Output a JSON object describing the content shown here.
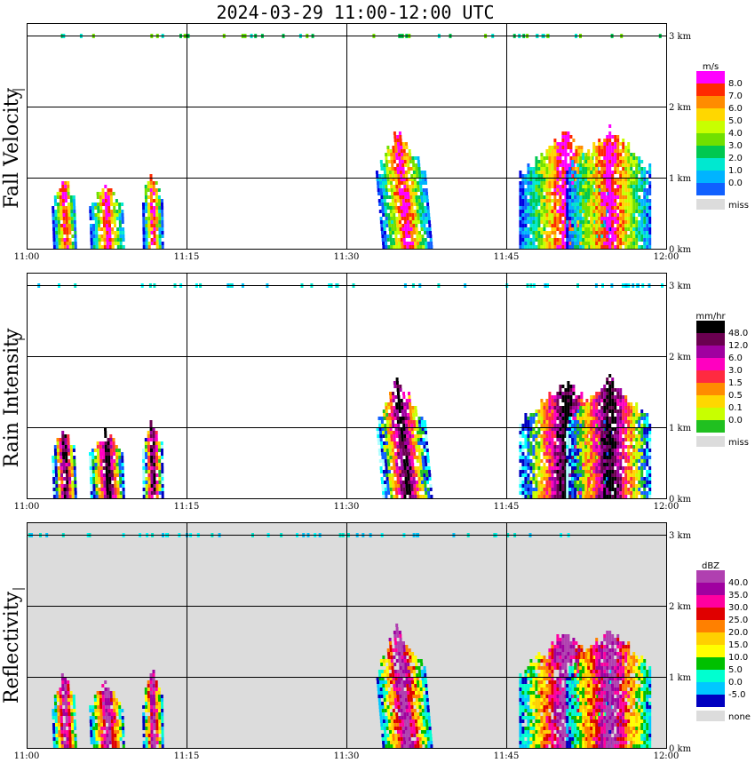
{
  "chart_data": {
    "type": "heatmap",
    "title": "2024-03-29  11:00-12:00 UTC",
    "x_ticks": [
      "11:00",
      "11:15",
      "11:30",
      "11:45",
      "12:00"
    ],
    "y_ticks": [
      "3 km",
      "2 km",
      "1 km",
      "0 km"
    ],
    "ylim_km": [
      0,
      3
    ],
    "grid": true,
    "panels": [
      {
        "ylabel": "Fall Velocity",
        "unit": "m/s",
        "background": "#ffffff",
        "legend_labels": [
          "8.0",
          "7.0",
          "6.0",
          "5.0",
          "4.0",
          "3.0",
          "2.0",
          "1.0",
          "0.0"
        ],
        "colors": [
          "#ff00ff",
          "#ff2a00",
          "#ff8c00",
          "#ffd700",
          "#c8ff00",
          "#70e000",
          "#00c850",
          "#00e8d0",
          "#00b4ff",
          "#1060ff",
          "#0000e0"
        ],
        "missing_label": "miss",
        "missing_color": "#dcdcdc"
      },
      {
        "ylabel": "Rain Intensity",
        "unit": "mm/hr",
        "background": "#ffffff",
        "legend_labels": [
          "48.0",
          "12.0",
          "6.0",
          "3.0",
          "1.5",
          "0.5",
          "0.1",
          "0.0"
        ],
        "colors": [
          "#000000",
          "#6a0050",
          "#a000a0",
          "#ff00c0",
          "#ff2a40",
          "#ff8c00",
          "#ffd700",
          "#c8ff00",
          "#20c020",
          "#1060ff",
          "#0000c0",
          "#00ffff",
          "#b0ffff"
        ],
        "missing_label": "miss",
        "missing_color": "#dcdcdc"
      },
      {
        "ylabel": "Reflectivity",
        "unit": "dBZ",
        "background": "#dcdcdc",
        "legend_labels": [
          "40.0",
          "35.0",
          "30.0",
          "25.0",
          "20.0",
          "15.0",
          "10.0",
          "5.0",
          "0.0",
          "-5.0"
        ],
        "colors": [
          "#b040b0",
          "#a000a0",
          "#ff00a0",
          "#e00000",
          "#ff8000",
          "#ffd000",
          "#ffff00",
          "#00c000",
          "#00ffd0",
          "#00c8ff",
          "#0000c0"
        ],
        "missing_label": "none",
        "missing_color": "#dcdcdc"
      }
    ]
  }
}
